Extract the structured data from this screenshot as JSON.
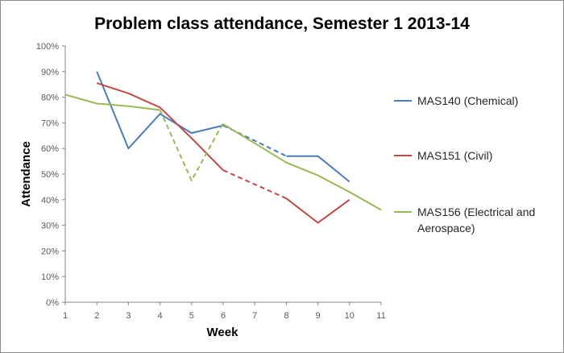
{
  "chart_data": {
    "type": "line",
    "title": "Problem class attendance, Semester 1 2013-14",
    "xlabel": "Week",
    "ylabel": "Attendance",
    "x_ticks": [
      "1",
      "2",
      "3",
      "4",
      "5",
      "6",
      "7",
      "8",
      "9",
      "10",
      "11"
    ],
    "y_ticks": [
      "0%",
      "10%",
      "20%",
      "30%",
      "40%",
      "50%",
      "60%",
      "70%",
      "80%",
      "90%",
      "100%"
    ],
    "xlim": [
      1,
      11
    ],
    "ylim": [
      0,
      1
    ],
    "grid": false,
    "legend_position": "right",
    "series": [
      {
        "name": "MAS140 (Chemical)",
        "color": "#4a7ebb",
        "solid_segments": [
          [
            [
              2,
              0.9
            ],
            [
              3,
              0.6
            ],
            [
              4,
              0.735
            ],
            [
              5,
              0.66
            ],
            [
              6,
              0.69
            ]
          ],
          [
            [
              8,
              0.57
            ],
            [
              9,
              0.57
            ],
            [
              10,
              0.47
            ]
          ]
        ],
        "dashed_segments": [
          [
            [
              6,
              0.69
            ],
            [
              8,
              0.57
            ]
          ]
        ]
      },
      {
        "name": "MAS151 (Civil)",
        "color": "#be4b48",
        "solid_segments": [
          [
            [
              2,
              0.855
            ],
            [
              3,
              0.815
            ],
            [
              4,
              0.76
            ],
            [
              5,
              0.64
            ],
            [
              6,
              0.515
            ]
          ],
          [
            [
              8,
              0.405
            ],
            [
              9,
              0.31
            ],
            [
              10,
              0.4
            ]
          ]
        ],
        "dashed_segments": [
          [
            [
              6,
              0.515
            ],
            [
              8,
              0.405
            ]
          ]
        ]
      },
      {
        "name": "MAS156 (Electrical and Aerospace)",
        "legend_lines": [
          "MAS156 (Electrical and",
          "Aerospace)"
        ],
        "color": "#98b954",
        "solid_segments": [
          [
            [
              1,
              0.81
            ],
            [
              2,
              0.775
            ],
            [
              3,
              0.765
            ],
            [
              4,
              0.75
            ]
          ],
          [
            [
              6,
              0.695
            ],
            [
              7,
              0.62
            ],
            [
              8,
              0.545
            ],
            [
              9,
              0.495
            ],
            [
              10,
              0.43
            ],
            [
              11,
              0.36
            ]
          ]
        ],
        "dashed_segments": [
          [
            [
              4,
              0.75
            ],
            [
              5,
              0.475
            ],
            [
              6,
              0.7
            ]
          ]
        ]
      }
    ]
  }
}
